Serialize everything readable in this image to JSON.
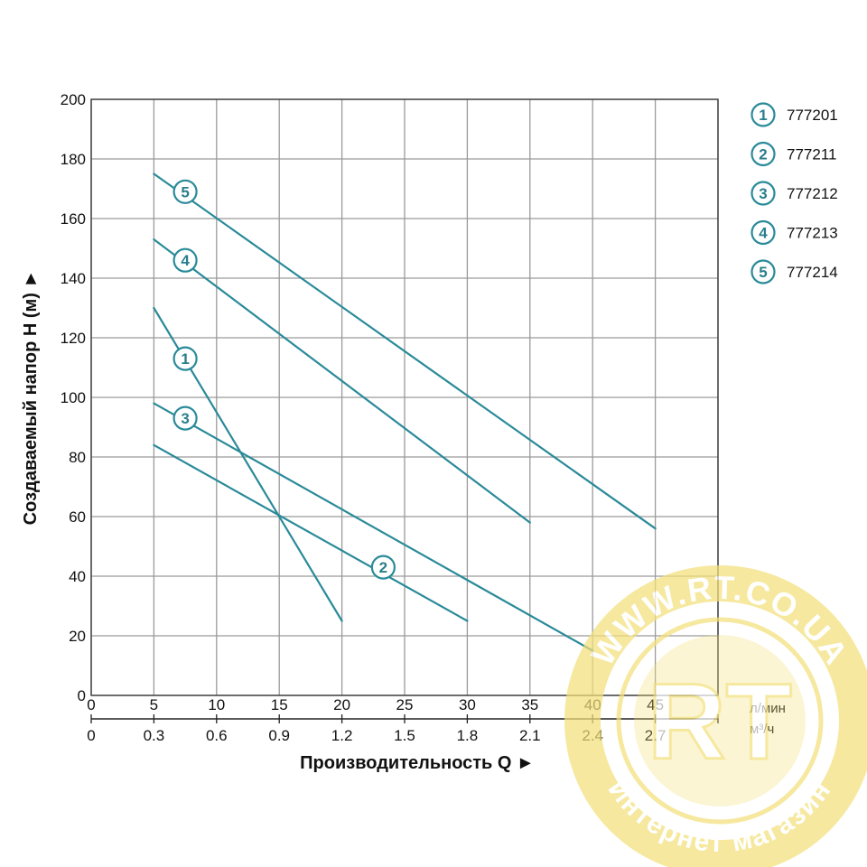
{
  "chart_data": {
    "type": "line",
    "xlabel": "Производительность Q ►",
    "ylabel": "Создаваемый напор H (м) ►",
    "x_unit_primary": "л/мин",
    "x_unit_secondary": "м³/ч",
    "xlim": [
      0,
      50
    ],
    "ylim": [
      0,
      200
    ],
    "x_ticks": [
      0,
      5,
      10,
      15,
      20,
      25,
      30,
      35,
      40,
      45
    ],
    "x_ticks_secondary": [
      "0",
      "0.3",
      "0.6",
      "0.9",
      "1.2",
      "1.5",
      "1.8",
      "2.1",
      "2.4",
      "2.7"
    ],
    "y_ticks": [
      0,
      20,
      40,
      60,
      80,
      100,
      120,
      140,
      160,
      180,
      200
    ],
    "grid": true,
    "legend_position": "top-right",
    "line_color": "#2a8a99",
    "series": [
      {
        "id": "1",
        "name": "777201",
        "x": [
          5,
          20
        ],
        "y": [
          130,
          25
        ],
        "label_at": [
          7.5,
          113
        ]
      },
      {
        "id": "2",
        "name": "777211",
        "x": [
          5,
          30
        ],
        "y": [
          84,
          25
        ],
        "label_at": [
          23.3,
          43
        ]
      },
      {
        "id": "3",
        "name": "777212",
        "x": [
          5,
          40
        ],
        "y": [
          98,
          15
        ],
        "label_at": [
          7.5,
          93
        ]
      },
      {
        "id": "4",
        "name": "777213",
        "x": [
          5,
          35
        ],
        "y": [
          153,
          58
        ],
        "label_at": [
          7.5,
          146
        ]
      },
      {
        "id": "5",
        "name": "777214",
        "x": [
          5,
          45
        ],
        "y": [
          175,
          56
        ],
        "label_at": [
          7.5,
          169
        ]
      }
    ]
  },
  "watermark": {
    "top_text": "WWW.RT.CO.UA",
    "bottom_text": "Интернет магазин",
    "logo_text": "RT",
    "color": "#f3e07a"
  }
}
